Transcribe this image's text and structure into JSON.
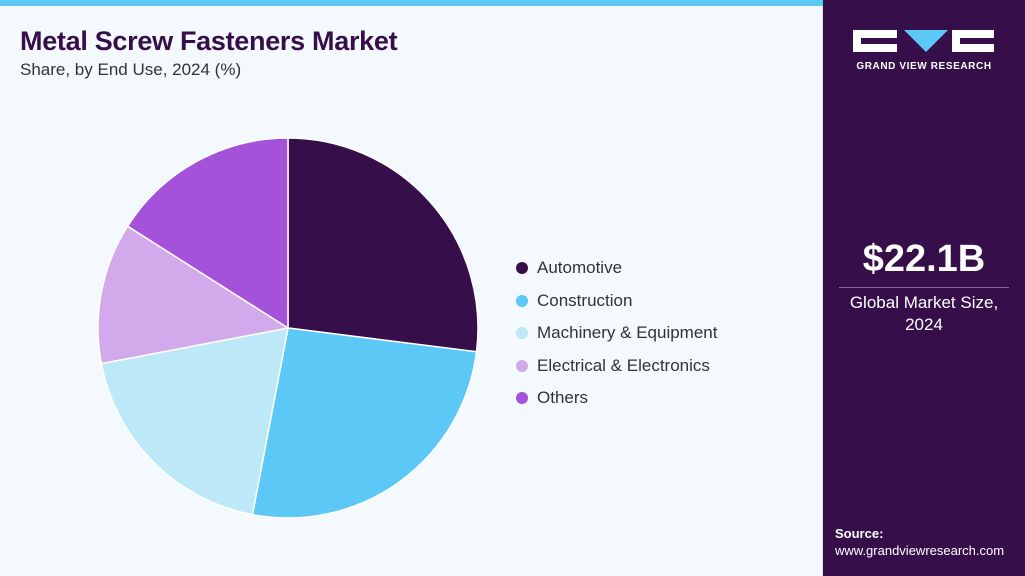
{
  "header": {
    "title": "Metal Screw Fasteners Market",
    "subtitle": "Share, by End Use, 2024 (%)"
  },
  "brand": {
    "logo_text": "GRAND VIEW RESEARCH",
    "accent_color": "#5bc8f5",
    "panel_color": "#360f4a"
  },
  "sidebar": {
    "market_size": "$22.1B",
    "market_label": "Global Market Size, 2024",
    "source_label": "Source:",
    "source_url": "www.grandviewresearch.com"
  },
  "chart_data": {
    "type": "pie",
    "title": "Metal Screw Fasteners Market",
    "subtitle": "Share, by End Use, 2024 (%)",
    "legend_position": "right",
    "start_angle_deg": 0,
    "direction": "clockwise",
    "slices": [
      {
        "label": "Automotive",
        "value": 27.0,
        "color": "#360f4a"
      },
      {
        "label": "Construction",
        "value": 26.0,
        "color": "#5bc8f5"
      },
      {
        "label": "Machinery & Equipment",
        "value": 19.0,
        "color": "#bde8f8"
      },
      {
        "label": "Electrical & Electronics",
        "value": 12.0,
        "color": "#d2a9ea"
      },
      {
        "label": "Others",
        "value": 16.0,
        "color": "#a352d9"
      }
    ]
  }
}
